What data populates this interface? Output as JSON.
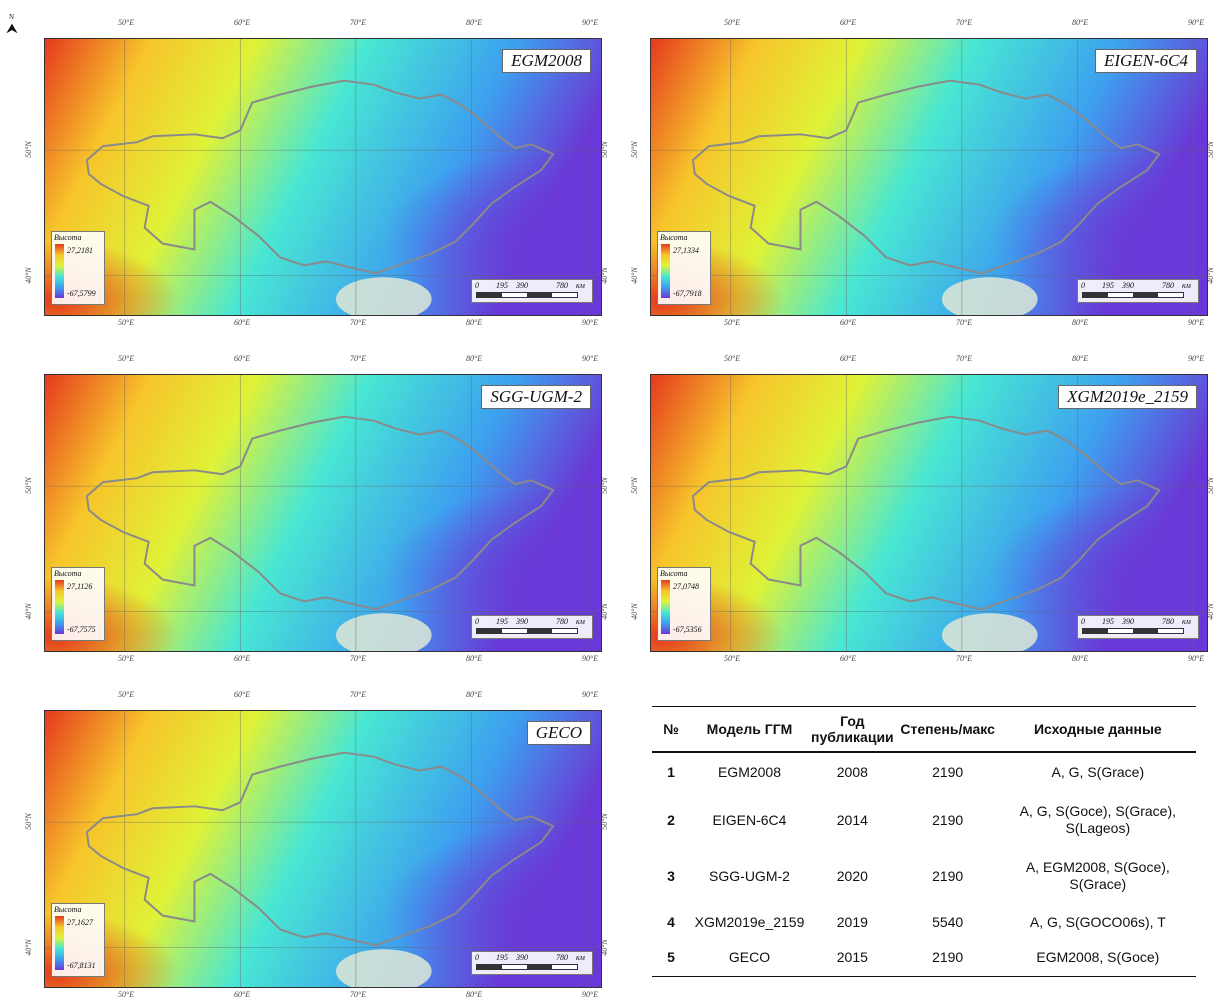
{
  "maps": [
    {
      "title": "EGM2008",
      "legend_title": "Высота",
      "max": "27,2181",
      "min": "-67,5799",
      "scale": [
        "0",
        "195",
        "390",
        "780",
        "км"
      ],
      "top_lon": [
        "50°E",
        "60°E",
        "70°E",
        "80°E",
        "90°E"
      ],
      "bottom_lon": [
        "50°E",
        "60°E",
        "70°E",
        "80°E",
        "90°E"
      ],
      "left_lat": [
        "50°N",
        "40°N"
      ],
      "right_lat": [
        "50°N",
        "40°N"
      ]
    },
    {
      "title": "EIGEN-6C4",
      "legend_title": "Высота",
      "max": "27,1334",
      "min": "-67,7918",
      "scale": [
        "0",
        "195",
        "390",
        "780",
        "км"
      ],
      "top_lon": [
        "50°E",
        "60°E",
        "70°E",
        "80°E",
        "90°E"
      ],
      "bottom_lon": [
        "50°E",
        "60°E",
        "70°E",
        "80°E",
        "90°E"
      ],
      "left_lat": [
        "50°N",
        "40°N"
      ],
      "right_lat": [
        "50°N",
        "40°N"
      ]
    },
    {
      "title": "SGG-UGM-2",
      "legend_title": "Высота",
      "max": "27,1126",
      "min": "-67,7575",
      "scale": [
        "0",
        "195",
        "390",
        "780",
        "км"
      ],
      "top_lon": [
        "50°E",
        "60°E",
        "70°E",
        "80°E",
        "90°E"
      ],
      "bottom_lon": [
        "50°E",
        "60°E",
        "70°E",
        "80°E",
        "90°E"
      ],
      "left_lat": [
        "50°N",
        "40°N"
      ],
      "right_lat": [
        "50°N",
        "40°N"
      ]
    },
    {
      "title": "XGM2019e_2159",
      "legend_title": "Высота",
      "max": "27,0748",
      "min": "-67,5356",
      "scale": [
        "0",
        "195",
        "390",
        "780",
        "км"
      ],
      "top_lon": [
        "50°E",
        "60°E",
        "70°E",
        "80°E",
        "90°E"
      ],
      "bottom_lon": [
        "50°E",
        "60°E",
        "70°E",
        "80°E",
        "90°E"
      ],
      "left_lat": [
        "50°N",
        "40°N"
      ],
      "right_lat": [
        "50°N",
        "40°N"
      ]
    },
    {
      "title": "GECO",
      "legend_title": "Высота",
      "max": "27,1627",
      "min": "-67,8131",
      "scale": [
        "0",
        "195",
        "390",
        "780",
        "км"
      ],
      "top_lon": [
        "50°E",
        "60°E",
        "70°E",
        "80°E",
        "90°E"
      ],
      "bottom_lon": [
        "50°E",
        "60°E",
        "70°E",
        "80°E",
        "90°E"
      ],
      "left_lat": [
        "50°N",
        "40°N"
      ],
      "right_lat": [
        "50°N",
        "40°N"
      ]
    }
  ],
  "north": {
    "glyph": "⮝",
    "label": "N"
  },
  "colors": {
    "high": "#e53a1d",
    "mid_high": "#f7c52b",
    "mid": "#dff237",
    "mid_low": "#48e7d3",
    "low": "#3da0ef",
    "lowest": "#6a38d6",
    "border": "#8a8a8a"
  },
  "table": {
    "headers": [
      "№",
      "Модель ГГМ",
      "Год публикации",
      "Степень/макс",
      "Исходные данные"
    ],
    "rows": [
      [
        "1",
        "EGM2008",
        "2008",
        "2190",
        "A, G, S(Grace)"
      ],
      [
        "2",
        "EIGEN-6C4",
        "2014",
        "2190",
        "A, G, S(Goce), S(Grace), S(Lageos)"
      ],
      [
        "3",
        "SGG-UGM-2",
        "2020",
        "2190",
        "A, EGM2008, S(Goce), S(Grace)"
      ],
      [
        "4",
        "XGM2019e_2159",
        "2019",
        "5540",
        "A, G, S(GOCO06s), T"
      ],
      [
        "5",
        "GECO",
        "2015",
        "2190",
        "EGM2008, S(Goce)"
      ]
    ]
  }
}
